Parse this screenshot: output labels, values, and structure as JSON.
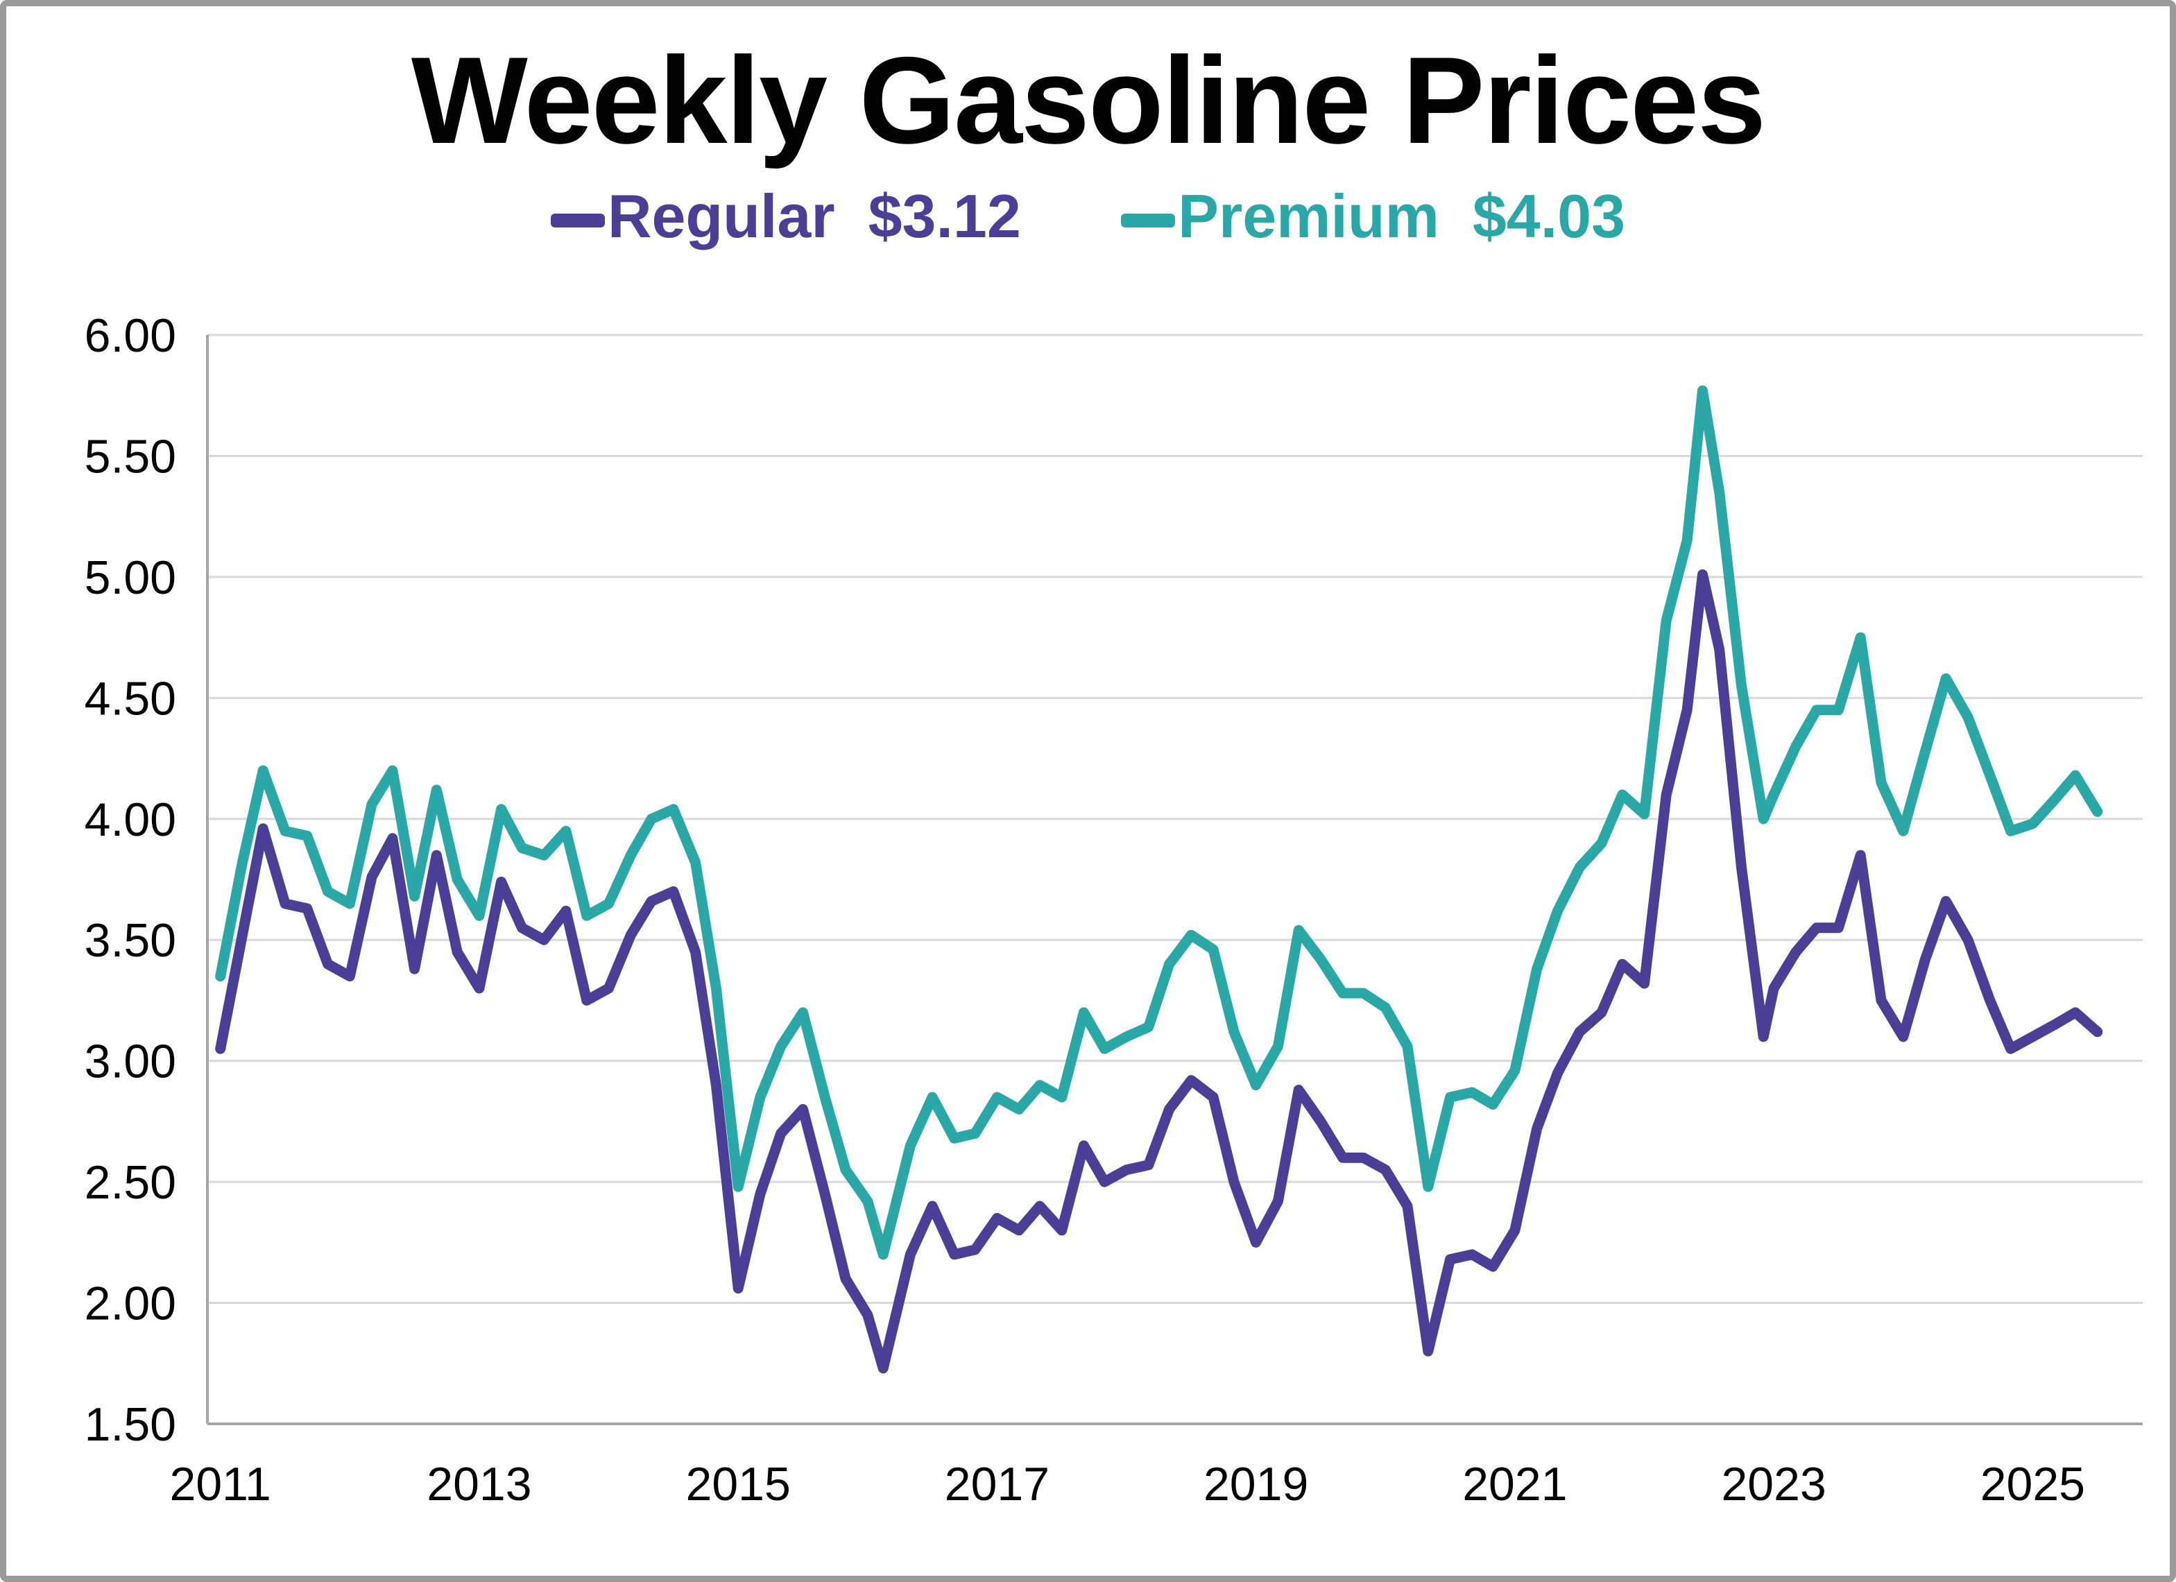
{
  "title": "Weekly Gasoline Prices",
  "legend": {
    "regular_label": "Regular",
    "regular_value": "$3.12",
    "premium_label": "Premium",
    "premium_value": "$4.03"
  },
  "colors": {
    "regular": "#4a3f97",
    "premium": "#2aa7a7",
    "grid": "#d9d9d9",
    "axis": "#a6a6a6",
    "text": "#000000"
  },
  "chart_data": {
    "type": "line",
    "title": "Weekly Gasoline Prices",
    "xlabel": "",
    "ylabel": "",
    "legend_position": "top",
    "grid": "horizontal",
    "xlim": [
      2010.9,
      2025.85
    ],
    "ylim": [
      1.5,
      6.0
    ],
    "x_ticks": [
      2011,
      2013,
      2015,
      2017,
      2019,
      2021,
      2023,
      2025
    ],
    "y_ticks": [
      1.5,
      2.0,
      2.5,
      3.0,
      3.5,
      4.0,
      4.5,
      5.0,
      5.5,
      6.0
    ],
    "x": [
      2011.0,
      2011.17,
      2011.33,
      2011.5,
      2011.67,
      2011.83,
      2012.0,
      2012.17,
      2012.33,
      2012.5,
      2012.67,
      2012.83,
      2013.0,
      2013.17,
      2013.33,
      2013.5,
      2013.67,
      2013.83,
      2014.0,
      2014.17,
      2014.33,
      2014.5,
      2014.67,
      2014.83,
      2015.0,
      2015.17,
      2015.33,
      2015.5,
      2015.67,
      2015.83,
      2016.0,
      2016.12,
      2016.33,
      2016.5,
      2016.67,
      2016.83,
      2017.0,
      2017.17,
      2017.33,
      2017.5,
      2017.67,
      2017.83,
      2018.0,
      2018.17,
      2018.33,
      2018.5,
      2018.67,
      2018.83,
      2019.0,
      2019.17,
      2019.33,
      2019.5,
      2019.67,
      2019.83,
      2020.0,
      2020.17,
      2020.33,
      2020.5,
      2020.67,
      2020.83,
      2021.0,
      2021.17,
      2021.33,
      2021.5,
      2021.67,
      2021.83,
      2022.0,
      2022.17,
      2022.33,
      2022.45,
      2022.58,
      2022.75,
      2022.92,
      2023.0,
      2023.17,
      2023.33,
      2023.5,
      2023.67,
      2023.83,
      2024.0,
      2024.17,
      2024.33,
      2024.5,
      2024.67,
      2024.83,
      2025.0,
      2025.17,
      2025.33,
      2025.5
    ],
    "series": [
      {
        "name": "Premium",
        "latest": "$4.03",
        "color_key": "premium",
        "values": [
          3.35,
          3.82,
          4.2,
          3.95,
          3.93,
          3.7,
          3.65,
          4.06,
          4.2,
          3.68,
          4.12,
          3.75,
          3.6,
          4.04,
          3.88,
          3.85,
          3.95,
          3.6,
          3.65,
          3.85,
          4.0,
          4.04,
          3.82,
          3.3,
          2.48,
          2.85,
          3.06,
          3.2,
          2.85,
          2.55,
          2.42,
          2.2,
          2.65,
          2.85,
          2.68,
          2.7,
          2.85,
          2.8,
          2.9,
          2.85,
          3.2,
          3.05,
          3.1,
          3.14,
          3.4,
          3.52,
          3.46,
          3.12,
          2.9,
          3.06,
          3.54,
          3.42,
          3.28,
          3.28,
          3.22,
          3.06,
          2.48,
          2.85,
          2.87,
          2.82,
          2.96,
          3.38,
          3.62,
          3.8,
          3.9,
          4.1,
          4.02,
          4.82,
          5.15,
          5.77,
          5.35,
          4.55,
          4.0,
          4.1,
          4.3,
          4.45,
          4.45,
          4.75,
          4.15,
          3.95,
          4.28,
          4.58,
          4.42,
          4.18,
          3.95,
          3.98,
          4.08,
          4.18,
          4.03
        ]
      },
      {
        "name": "Regular",
        "latest": "$3.12",
        "color_key": "regular",
        "values": [
          3.05,
          3.52,
          3.96,
          3.65,
          3.63,
          3.4,
          3.35,
          3.76,
          3.92,
          3.38,
          3.85,
          3.45,
          3.3,
          3.74,
          3.55,
          3.5,
          3.62,
          3.25,
          3.3,
          3.52,
          3.66,
          3.7,
          3.45,
          2.9,
          2.06,
          2.45,
          2.7,
          2.8,
          2.45,
          2.1,
          1.95,
          1.73,
          2.2,
          2.4,
          2.2,
          2.22,
          2.35,
          2.3,
          2.4,
          2.3,
          2.65,
          2.5,
          2.55,
          2.57,
          2.8,
          2.92,
          2.85,
          2.5,
          2.25,
          2.42,
          2.88,
          2.75,
          2.6,
          2.6,
          2.55,
          2.4,
          1.8,
          2.18,
          2.2,
          2.15,
          2.3,
          2.72,
          2.95,
          3.12,
          3.2,
          3.4,
          3.32,
          4.1,
          4.45,
          5.01,
          4.7,
          3.8,
          3.1,
          3.3,
          3.45,
          3.55,
          3.55,
          3.85,
          3.25,
          3.1,
          3.42,
          3.66,
          3.5,
          3.25,
          3.05,
          3.1,
          3.15,
          3.2,
          3.12
        ]
      }
    ]
  }
}
